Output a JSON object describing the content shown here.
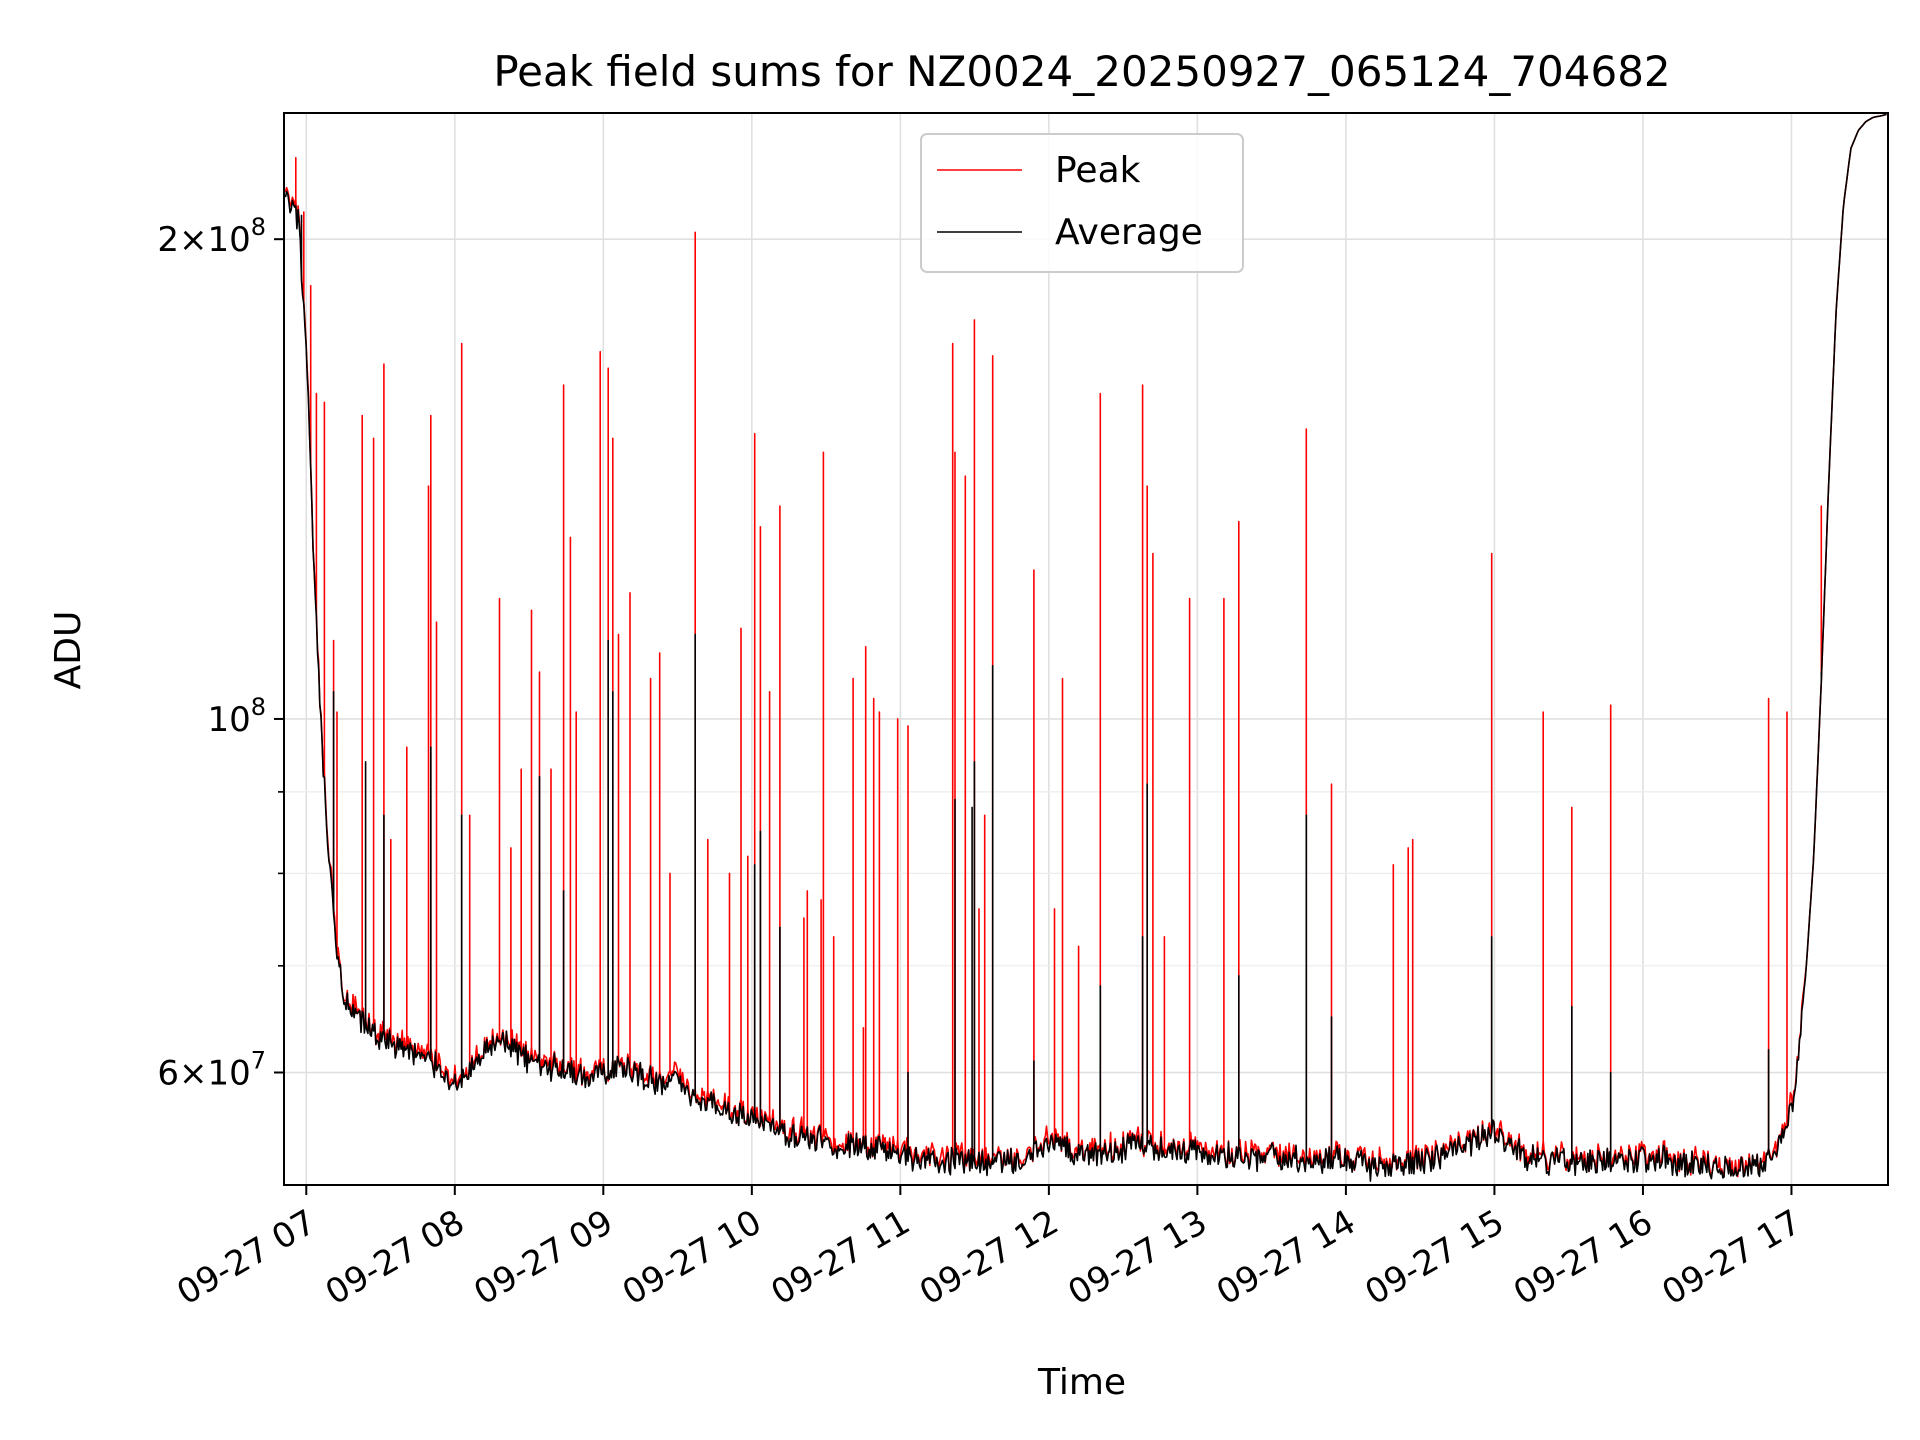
{
  "chart_data": {
    "type": "line",
    "title": "Peak field sums for NZ0024_20250927_065124_704682",
    "xlabel": "Time",
    "ylabel": "ADU",
    "yscale": "log",
    "ylim": [
      51000000,
      240000000
    ],
    "xlim": [
      6.85,
      17.65
    ],
    "grid": true,
    "legend_position": "top-center",
    "x_ticks": [
      {
        "value": 7,
        "label": "09-27 07"
      },
      {
        "value": 8,
        "label": "09-27 08"
      },
      {
        "value": 9,
        "label": "09-27 09"
      },
      {
        "value": 10,
        "label": "09-27 10"
      },
      {
        "value": 11,
        "label": "09-27 11"
      },
      {
        "value": 12,
        "label": "09-27 12"
      },
      {
        "value": 13,
        "label": "09-27 13"
      },
      {
        "value": 14,
        "label": "09-27 14"
      },
      {
        "value": 15,
        "label": "09-27 15"
      },
      {
        "value": 16,
        "label": "09-27 16"
      },
      {
        "value": 17,
        "label": "09-27 17"
      }
    ],
    "y_ticks_major": [
      {
        "value": 60000000,
        "mantissa": "6",
        "exp": "7"
      },
      {
        "value": 100000000,
        "mantissa": "",
        "exp": "8"
      },
      {
        "value": 200000000,
        "mantissa": "2",
        "exp": "8"
      }
    ],
    "y_ticks_minor": [
      70000000,
      80000000,
      90000000
    ],
    "baseline": {
      "x": [
        6.86,
        6.95,
        7.0,
        7.05,
        7.1,
        7.15,
        7.2,
        7.25,
        7.3,
        7.4,
        7.5,
        7.6,
        7.75,
        7.9,
        8.0,
        8.1,
        8.2,
        8.3,
        8.4,
        8.5,
        8.6,
        8.7,
        8.8,
        8.9,
        9.0,
        9.1,
        9.2,
        9.3,
        9.4,
        9.5,
        9.6,
        9.7,
        9.8,
        9.9,
        10.0,
        10.2,
        10.4,
        10.6,
        10.8,
        11.0,
        11.2,
        11.4,
        11.6,
        11.8,
        12.0,
        12.2,
        12.4,
        12.6,
        12.8,
        13.0,
        13.2,
        13.4,
        13.6,
        13.8,
        14.0,
        14.2,
        14.4,
        14.6,
        14.8,
        15.0,
        15.2,
        15.4,
        15.6,
        15.8,
        16.0,
        16.2,
        16.4,
        16.6,
        16.8,
        16.9,
        17.0,
        17.05,
        17.1,
        17.15,
        17.2,
        17.25,
        17.3,
        17.35,
        17.4,
        17.45,
        17.5,
        17.55,
        17.6,
        17.64
      ],
      "y": [
        212000000,
        205000000,
        170000000,
        125000000,
        98000000,
        82000000,
        72000000,
        67000000,
        65500000,
        64000000,
        63000000,
        62500000,
        61500000,
        60500000,
        59000000,
        60000000,
        61500000,
        63000000,
        62000000,
        61000000,
        60500000,
        60500000,
        60000000,
        59500000,
        60000000,
        60500000,
        60000000,
        59500000,
        59000000,
        59500000,
        58000000,
        57500000,
        57000000,
        56500000,
        56000000,
        55000000,
        54500000,
        54000000,
        53700000,
        53300000,
        53000000,
        52800000,
        52500000,
        52800000,
        54000000,
        53500000,
        53500000,
        54000000,
        53800000,
        53500000,
        53300000,
        53100000,
        53000000,
        52800000,
        53000000,
        52300000,
        52600000,
        53000000,
        54000000,
        55000000,
        53200000,
        52800000,
        52700000,
        52600000,
        53000000,
        52800000,
        52500000,
        52100000,
        52500000,
        53300000,
        57000000,
        62000000,
        70000000,
        82000000,
        105000000,
        140000000,
        180000000,
        210000000,
        228000000,
        234000000,
        237000000,
        238500000,
        239000000,
        239500000
      ]
    },
    "series": [
      {
        "name": "Peak",
        "color": "#ff0000",
        "stroke_width": 1.6,
        "spikes": [
          [
            6.93,
            225000000
          ],
          [
            6.98,
            208000000
          ],
          [
            7.03,
            187000000
          ],
          [
            7.07,
            160000000
          ],
          [
            7.12,
            158000000
          ],
          [
            7.18,
            112000000
          ],
          [
            7.21,
            101000000
          ],
          [
            7.38,
            155000000
          ],
          [
            7.45,
            150000000
          ],
          [
            7.52,
            167000000
          ],
          [
            7.57,
            84000000
          ],
          [
            7.68,
            96000000
          ],
          [
            7.82,
            140000000
          ],
          [
            7.84,
            155000000
          ],
          [
            7.88,
            115000000
          ],
          [
            8.05,
            172000000
          ],
          [
            8.1,
            87000000
          ],
          [
            8.3,
            119000000
          ],
          [
            8.38,
            83000000
          ],
          [
            8.45,
            93000000
          ],
          [
            8.52,
            117000000
          ],
          [
            8.57,
            107000000
          ],
          [
            8.65,
            93000000
          ],
          [
            8.73,
            162000000
          ],
          [
            8.78,
            130000000
          ],
          [
            8.82,
            101000000
          ],
          [
            8.98,
            170000000
          ],
          [
            9.03,
            166000000
          ],
          [
            9.06,
            150000000
          ],
          [
            9.1,
            113000000
          ],
          [
            9.18,
            120000000
          ],
          [
            9.32,
            106000000
          ],
          [
            9.38,
            110000000
          ],
          [
            9.45,
            80000000
          ],
          [
            9.62,
            202000000
          ],
          [
            9.7,
            84000000
          ],
          [
            9.85,
            80000000
          ],
          [
            9.93,
            114000000
          ],
          [
            9.97,
            82000000
          ],
          [
            10.02,
            151000000
          ],
          [
            10.06,
            132000000
          ],
          [
            10.12,
            104000000
          ],
          [
            10.19,
            136000000
          ],
          [
            10.35,
            75000000
          ],
          [
            10.37,
            78000000
          ],
          [
            10.47,
            77000000
          ],
          [
            10.48,
            147000000
          ],
          [
            10.55,
            73000000
          ],
          [
            10.68,
            106000000
          ],
          [
            10.75,
            64000000
          ],
          [
            10.77,
            111000000
          ],
          [
            10.82,
            103000000
          ],
          [
            10.86,
            101000000
          ],
          [
            10.98,
            100000000
          ],
          [
            11.05,
            99000000
          ],
          [
            11.35,
            172000000
          ],
          [
            11.37,
            147000000
          ],
          [
            11.44,
            142000000
          ],
          [
            11.5,
            178000000
          ],
          [
            11.53,
            76000000
          ],
          [
            11.57,
            87000000
          ],
          [
            11.62,
            169000000
          ],
          [
            11.9,
            124000000
          ],
          [
            12.04,
            76000000
          ],
          [
            12.09,
            106000000
          ],
          [
            12.2,
            72000000
          ],
          [
            12.35,
            160000000
          ],
          [
            12.63,
            162000000
          ],
          [
            12.66,
            140000000
          ],
          [
            12.7,
            127000000
          ],
          [
            12.78,
            73000000
          ],
          [
            12.95,
            119000000
          ],
          [
            13.18,
            119000000
          ],
          [
            13.28,
            133000000
          ],
          [
            13.73,
            152000000
          ],
          [
            13.9,
            91000000
          ],
          [
            14.32,
            81000000
          ],
          [
            14.42,
            83000000
          ],
          [
            14.45,
            84000000
          ],
          [
            14.98,
            127000000
          ],
          [
            15.33,
            101000000
          ],
          [
            15.52,
            88000000
          ],
          [
            15.78,
            102000000
          ],
          [
            16.85,
            103000000
          ],
          [
            16.97,
            101000000
          ],
          [
            17.2,
            136000000
          ]
        ]
      },
      {
        "name": "Average",
        "color": "#000000",
        "stroke_width": 1.6,
        "spikes": [
          [
            6.97,
            207000000
          ],
          [
            7.18,
            104000000
          ],
          [
            7.4,
            94000000
          ],
          [
            7.52,
            87000000
          ],
          [
            7.84,
            96000000
          ],
          [
            8.05,
            87000000
          ],
          [
            8.57,
            92000000
          ],
          [
            8.73,
            78000000
          ],
          [
            9.03,
            112000000
          ],
          [
            9.06,
            104000000
          ],
          [
            9.62,
            113000000
          ],
          [
            10.02,
            81000000
          ],
          [
            10.06,
            85000000
          ],
          [
            10.19,
            74000000
          ],
          [
            11.05,
            60000000
          ],
          [
            11.37,
            89000000
          ],
          [
            11.48,
            88000000
          ],
          [
            11.5,
            94000000
          ],
          [
            11.62,
            108000000
          ],
          [
            11.9,
            61000000
          ],
          [
            12.35,
            68000000
          ],
          [
            12.63,
            73000000
          ],
          [
            12.66,
            91000000
          ],
          [
            13.28,
            69000000
          ],
          [
            13.73,
            87000000
          ],
          [
            13.9,
            65000000
          ],
          [
            14.98,
            73000000
          ],
          [
            15.52,
            66000000
          ],
          [
            15.78,
            60000000
          ],
          [
            16.85,
            62000000
          ],
          [
            17.2,
            107000000
          ]
        ]
      }
    ]
  }
}
